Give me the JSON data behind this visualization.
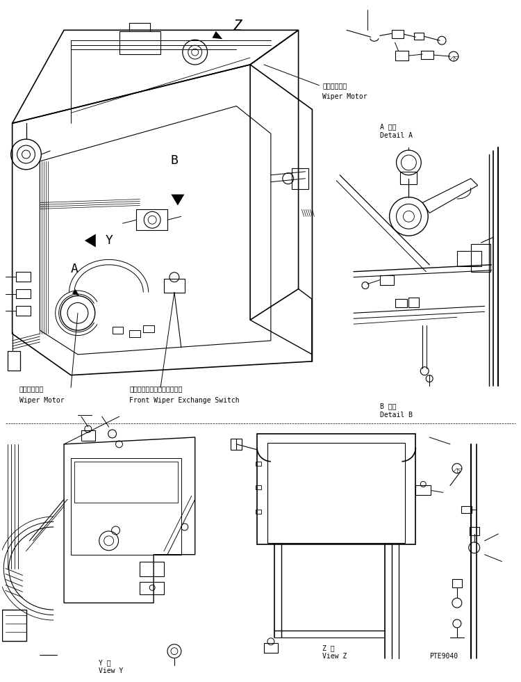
{
  "background_color": "#ffffff",
  "line_color": "#000000",
  "fig_width": 7.5,
  "fig_height": 9.81,
  "labels": {
    "wiper_motor_top": "ワイパモータ\nWiper Motor",
    "wiper_motor_bottom": "ワイバモータ\nWiper Motor",
    "front_wiper_switch": "フロントワイバ切換スイッチ\nFront Wiper Exchange Switch",
    "detail_a_jp": "A 詳細",
    "detail_a_en": "Detail A",
    "detail_b_jp": "B 詳細",
    "detail_b_en": "Detail B",
    "view_y_jp": "Y 視",
    "view_y_en": "View Y",
    "view_z_jp": "Z 視",
    "view_z_en": "View Z",
    "pte9040": "PTE9040",
    "label_z": "Z",
    "label_b": "B",
    "label_y": "Y",
    "label_a": "A"
  },
  "font_size_small": 7,
  "font_size_medium": 8,
  "font_size_label": 13
}
